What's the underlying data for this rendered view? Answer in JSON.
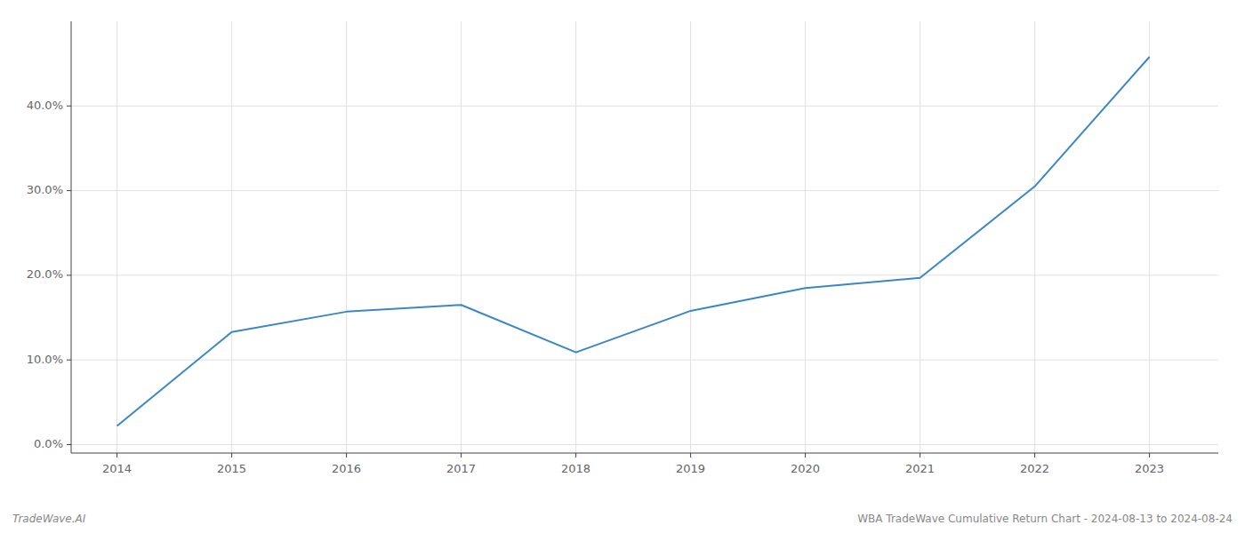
{
  "chart_data": {
    "type": "line",
    "title": "WBA TradeWave Cumulative Return Chart - 2024-08-13 to 2024-08-24",
    "annotations": [
      "TradeWave.AI"
    ],
    "x": [
      2014,
      2015,
      2016,
      2017,
      2018,
      2019,
      2020,
      2021,
      2022,
      2023
    ],
    "values": [
      0.022,
      0.133,
      0.157,
      0.165,
      0.109,
      0.158,
      0.185,
      0.197,
      0.305,
      0.458
    ],
    "color": "#3a87c8",
    "xlim": [
      2013.6,
      2023.6
    ],
    "xticks": [
      2014,
      2015,
      2016,
      2017,
      2018,
      2019,
      2020,
      2021,
      2022,
      2023
    ],
    "ylim": [
      -0.01,
      0.5
    ],
    "yticks": [
      {
        "value": 0.0,
        "label": "0.0%"
      },
      {
        "value": 0.1,
        "label": "10.0%"
      },
      {
        "value": 0.2,
        "label": "20.0%"
      },
      {
        "value": 0.3,
        "label": "30.0%"
      },
      {
        "value": 0.4,
        "label": "40.0%"
      }
    ],
    "grid": true
  }
}
